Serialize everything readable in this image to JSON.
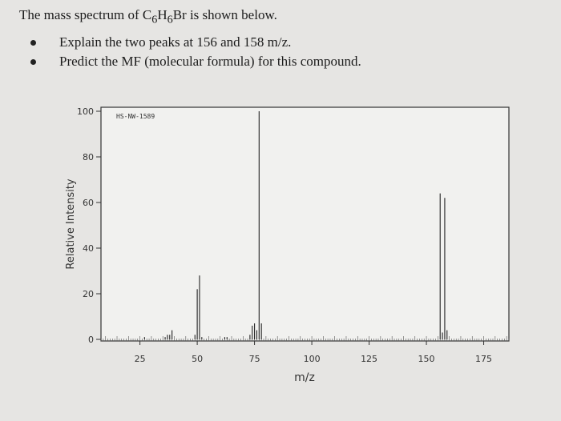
{
  "question": {
    "title_prefix": "The mass spectrum of C",
    "title_sub1": "6",
    "title_mid": "H",
    "title_sub2": "6",
    "title_suffix": "Br is shown below.",
    "bullets": [
      "Explain the two peaks at 156 and 158 m/z.",
      "Predict the MF (molecular formula) for this compound."
    ]
  },
  "chart_data": {
    "type": "bar",
    "title": "",
    "annotation": "HS-NW-1589",
    "xlabel": "m/z",
    "ylabel": "Relative Intensity",
    "xlim": [
      8,
      186
    ],
    "ylim": [
      0,
      100
    ],
    "xticks": [
      25,
      50,
      75,
      100,
      125,
      150,
      175
    ],
    "yticks": [
      0,
      20,
      40,
      60,
      80,
      100
    ],
    "grid": false,
    "peaks": [
      {
        "x": 27,
        "y": 1
      },
      {
        "x": 36,
        "y": 1
      },
      {
        "x": 37,
        "y": 2
      },
      {
        "x": 38,
        "y": 2
      },
      {
        "x": 39,
        "y": 4
      },
      {
        "x": 49,
        "y": 2
      },
      {
        "x": 50,
        "y": 22
      },
      {
        "x": 51,
        "y": 28
      },
      {
        "x": 52,
        "y": 1
      },
      {
        "x": 62,
        "y": 1
      },
      {
        "x": 63,
        "y": 1
      },
      {
        "x": 73,
        "y": 2
      },
      {
        "x": 74,
        "y": 6
      },
      {
        "x": 75,
        "y": 7
      },
      {
        "x": 76,
        "y": 4
      },
      {
        "x": 77,
        "y": 100
      },
      {
        "x": 78,
        "y": 7
      },
      {
        "x": 156,
        "y": 64
      },
      {
        "x": 157,
        "y": 3
      },
      {
        "x": 158,
        "y": 62
      },
      {
        "x": 159,
        "y": 4
      }
    ]
  }
}
